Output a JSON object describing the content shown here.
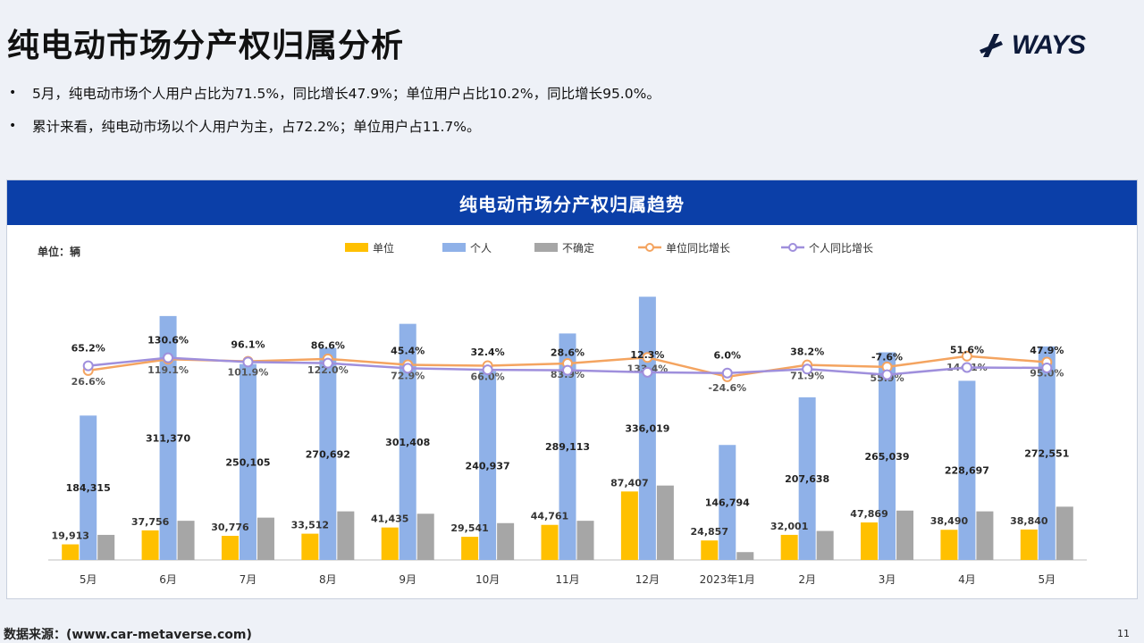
{
  "page": {
    "title": "纯电动市场分产权归属分析",
    "logo_text": "WAYS",
    "bullets": [
      "5月，纯电动市场个人用户占比为71.5%，同比增长47.9%；单位用户占比10.2%，同比增长95.0%。",
      "累计来看，纯电动市场以个人用户为主，占72.2%；单位用户占11.7%。"
    ],
    "source": "数据来源：(www.car-metaverse.com)",
    "page_number": "11"
  },
  "chart_data": {
    "type": "bar",
    "title": "纯电动市场分产权归属趋势",
    "unit_label": "单位：辆",
    "categories": [
      "5月",
      "6月",
      "7月",
      "8月",
      "9月",
      "10月",
      "11月",
      "12月",
      "2023年1月",
      "2月",
      "3月",
      "4月",
      "5月"
    ],
    "series": [
      {
        "name": "单位",
        "kind": "bar",
        "color": "#ffc000",
        "values": [
          19913,
          37756,
          30776,
          33512,
          41435,
          29541,
          44761,
          87407,
          24857,
          32001,
          47869,
          38490,
          38840
        ],
        "labels": [
          "19,913",
          "37,756",
          "30,776",
          "33,512",
          "41,435",
          "29,541",
          "44,761",
          "87,407",
          "24,857",
          "32,001",
          "47,869",
          "38,490",
          "38,840"
        ]
      },
      {
        "name": "个人",
        "kind": "bar",
        "color": "#8fb1e8",
        "values": [
          184315,
          311370,
          250105,
          270692,
          301408,
          240937,
          289113,
          336019,
          146794,
          207638,
          265039,
          228697,
          272551
        ],
        "labels": [
          "184,315",
          "311,370",
          "250,105",
          "270,692",
          "301,408",
          "240,937",
          "289,113",
          "336,019",
          "146,794",
          "207,638",
          "265,039",
          "228,697",
          "272,551"
        ]
      },
      {
        "name": "不确定",
        "kind": "bar",
        "color": "#a6a6a6",
        "values": [
          32000,
          50000,
          54000,
          62000,
          59000,
          47000,
          50000,
          95000,
          10000,
          37000,
          63000,
          62000,
          68000
        ]
      },
      {
        "name": "单位同比增长",
        "kind": "line",
        "color": "#f4a460",
        "values": [
          26.6,
          119.1,
          101.9,
          122.0,
          72.9,
          66.0,
          83.9,
          133.4,
          -24.6,
          71.9,
          55.9,
          144.1,
          95.0
        ],
        "labels": [
          "26.6%",
          "119.1%",
          "101.9%",
          "122.0%",
          "72.9%",
          "66.0%",
          "83.9%",
          "133.4%",
          "-24.6%",
          "71.9%",
          "55.9%",
          "144.1%",
          "95.0%"
        ]
      },
      {
        "name": "个人同比增长",
        "kind": "line",
        "color": "#9f8fdc",
        "values": [
          65.2,
          130.6,
          96.1,
          86.6,
          45.4,
          32.4,
          28.6,
          12.3,
          6.0,
          38.2,
          -7.6,
          51.6,
          47.9
        ],
        "labels": [
          "65.2%",
          "130.6%",
          "96.1%",
          "86.6%",
          "45.4%",
          "32.4%",
          "28.6%",
          "12.3%",
          "6.0%",
          "38.2%",
          "-7.6%",
          "51.6%",
          "47.9%"
        ]
      }
    ],
    "ylim_bars": [
      0,
      350000
    ],
    "legend_position": "top"
  }
}
